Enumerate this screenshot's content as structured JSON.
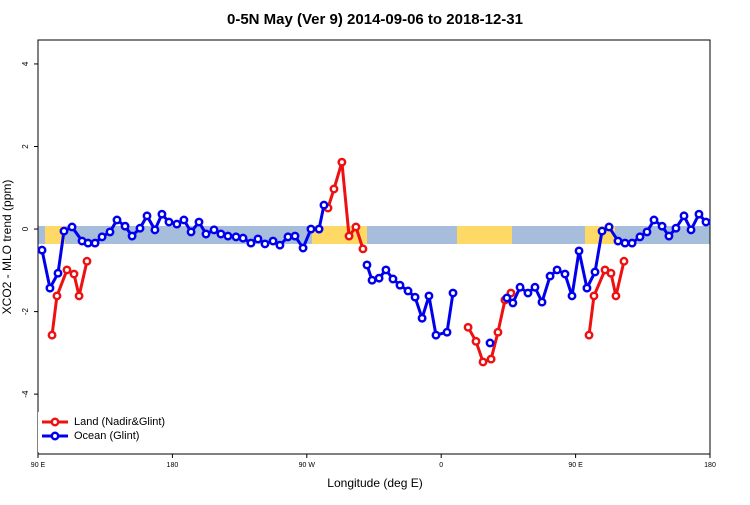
{
  "chart_data": {
    "type": "line",
    "title": "0-5N May (Ver 9)   2014-09-06 to 2018-12-31",
    "xlabel": "Longitude (deg E)",
    "ylabel": "XCO2 - MLO trend (ppm)",
    "xlim": [
      90,
      540
    ],
    "ylim": [
      -5.45,
      4.58
    ],
    "xticks": [
      {
        "value": 90,
        "label": "90 E"
      },
      180,
      {
        "value": 270,
        "label": "90 W"
      },
      {
        "value": 360,
        "label": "0"
      },
      {
        "value": 450,
        "label": "90 E"
      },
      {
        "value": 540,
        "label": "180"
      }
    ],
    "yticks": [
      -4,
      -2,
      0,
      2,
      4
    ],
    "legend": "bottom-left",
    "series": [
      {
        "name": "Land (Nadir&Glint)",
        "color": "#ee1111",
        "x": [
          99.4,
          102.7,
          109.4,
          114.1,
          117.5,
          122.8,
          200,
          284.2,
          288.2,
          293.5,
          298.3,
          302.9,
          307.6,
          340,
          378,
          383.3,
          388,
          393.4,
          398,
          402.7,
          406.7,
          430,
          459,
          462.3,
          469.7,
          473.7,
          477,
          482.4
        ],
        "values": [
          -2.57,
          -1.62,
          -0.99,
          -1.09,
          -1.62,
          -0.78,
          null,
          0.51,
          0.97,
          1.62,
          -0.17,
          0.05,
          -0.48,
          null,
          -2.38,
          -2.72,
          -3.22,
          -3.15,
          -2.5,
          -1.72,
          -1.55,
          null,
          -2.57,
          -1.62,
          -0.99,
          -1.07,
          -1.62,
          -0.78
        ]
      },
      {
        "name": "Ocean (Glint)",
        "color": "#0000ee",
        "x": [
          92.7,
          98,
          103.4,
          107.4,
          112.8,
          119.5,
          123.5,
          128.2,
          132.9,
          138.2,
          142.9,
          148.3,
          153,
          158.3,
          163,
          168.3,
          173,
          177.7,
          183,
          187.7,
          192.5,
          197.8,
          202.5,
          207.9,
          212.5,
          217.2,
          222.6,
          227.3,
          232.6,
          237.3,
          242,
          247.4,
          252,
          257.4,
          262.1,
          267.5,
          272.8,
          278.2,
          281.5,
          296,
          310.3,
          313.7,
          318.4,
          323,
          327.7,
          332.4,
          337.8,
          342.5,
          347.2,
          351.8,
          356.5,
          363.9,
          367.9,
          380,
          392.7,
          398,
          404,
          408,
          412.8,
          418.1,
          422.8,
          427.5,
          432.9,
          437.6,
          442.9,
          447.6,
          452.3,
          457.6,
          463,
          467.7,
          472.4,
          478.4,
          483.1,
          487.8,
          493.1,
          497.8,
          502.5,
          507.9,
          512.5,
          517.2,
          522.6,
          527.3,
          532.6,
          537.3
        ],
        "values": [
          -0.51,
          -1.43,
          -1.07,
          -0.05,
          0.05,
          -0.29,
          -0.34,
          -0.34,
          -0.19,
          -0.07,
          0.22,
          0.07,
          -0.17,
          0.02,
          0.32,
          -0.02,
          0.36,
          0.17,
          0.12,
          0.22,
          -0.07,
          0.17,
          -0.12,
          -0.02,
          -0.12,
          -0.17,
          -0.19,
          -0.22,
          -0.34,
          -0.24,
          -0.36,
          -0.29,
          -0.39,
          -0.19,
          -0.17,
          -0.46,
          0,
          0,
          0.58,
          null,
          -0.87,
          -1.24,
          -1.19,
          -0.99,
          -1.21,
          -1.36,
          -1.5,
          -1.65,
          -2.16,
          -1.62,
          -2.57,
          -2.5,
          -1.55,
          null,
          -2.76,
          null,
          -1.67,
          -1.79,
          -1.41,
          -1.55,
          -1.41,
          -1.77,
          -1.14,
          -0.99,
          -1.09,
          -1.62,
          -0.53,
          -1.43,
          -1.04,
          -0.05,
          0.05,
          -0.29,
          -0.34,
          -0.34,
          -0.19,
          -0.07,
          0.22,
          0.07,
          -0.17,
          0.02,
          0.32,
          -0.02,
          0.36,
          0.17
        ]
      }
    ]
  }
}
